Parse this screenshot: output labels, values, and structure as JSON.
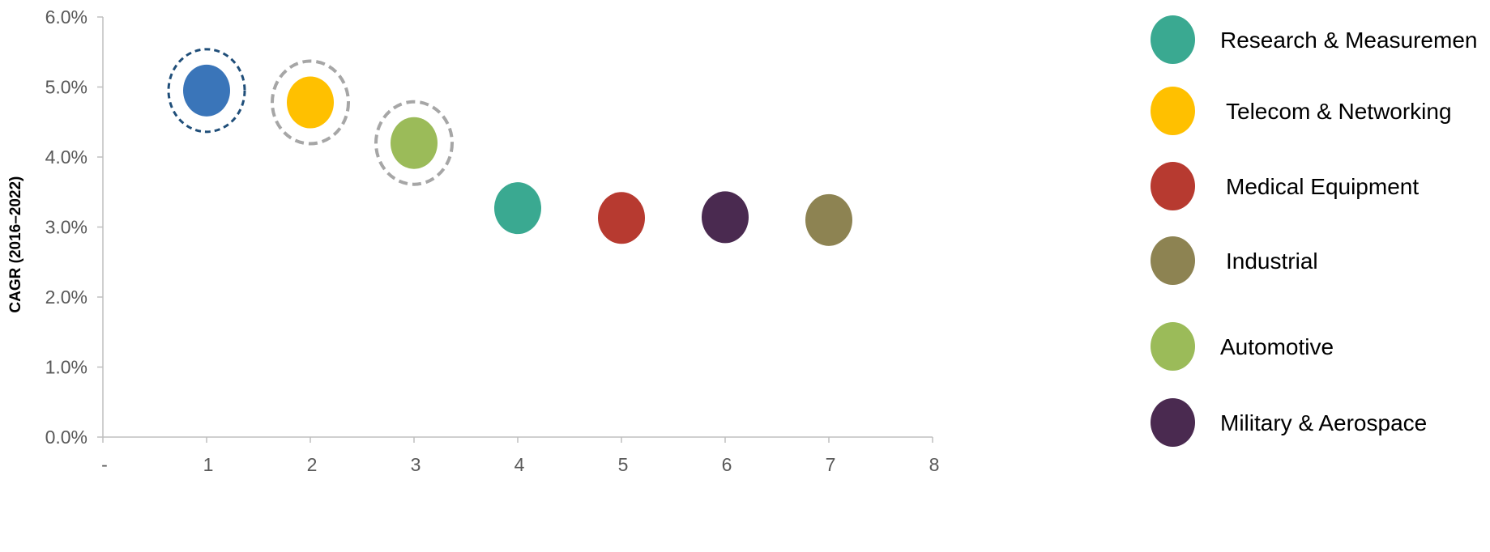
{
  "chart_data": {
    "type": "scatter",
    "ylabel": "CAGR (2016–2022)",
    "xlabel": "",
    "xlim": [
      0,
      8
    ],
    "ylim": [
      0,
      6
    ],
    "x_tick_labels": [
      "-",
      "1",
      "2",
      "3",
      "4",
      "5",
      "6",
      "7",
      "8"
    ],
    "y_tick_labels": [
      "0.0%",
      "1.0%",
      "2.0%",
      "3.0%",
      "4.0%",
      "5.0%",
      "6.0%"
    ],
    "grid": false,
    "points": [
      {
        "x": 1,
        "y": 4.95,
        "color": "#3a75b9",
        "highlight": "#1f4e79"
      },
      {
        "x": 2,
        "y": 4.78,
        "color": "#ffc000",
        "highlight": "#a6a6a6"
      },
      {
        "x": 3,
        "y": 4.2,
        "color": "#9bbb59",
        "highlight": "#a6a6a6"
      },
      {
        "x": 4,
        "y": 3.27,
        "color": "#3aa991"
      },
      {
        "x": 5,
        "y": 3.13,
        "color": "#b73a30"
      },
      {
        "x": 6,
        "y": 3.14,
        "color": "#4a2a50"
      },
      {
        "x": 7,
        "y": 3.1,
        "color": "#8d8352"
      }
    ],
    "legend_position": "right",
    "legend": [
      {
        "label": "Research & Measuremen",
        "color": "#3aa991"
      },
      {
        "label": "Telecom & Networking",
        "color": "#ffc000"
      },
      {
        "label": "Medical Equipment",
        "color": "#b73a30"
      },
      {
        "label": "Industrial",
        "color": "#8d8352"
      },
      {
        "label": "Automotive",
        "color": "#9bbb59"
      },
      {
        "label": "Military & Aerospace",
        "color": "#4a2a50"
      }
    ]
  }
}
